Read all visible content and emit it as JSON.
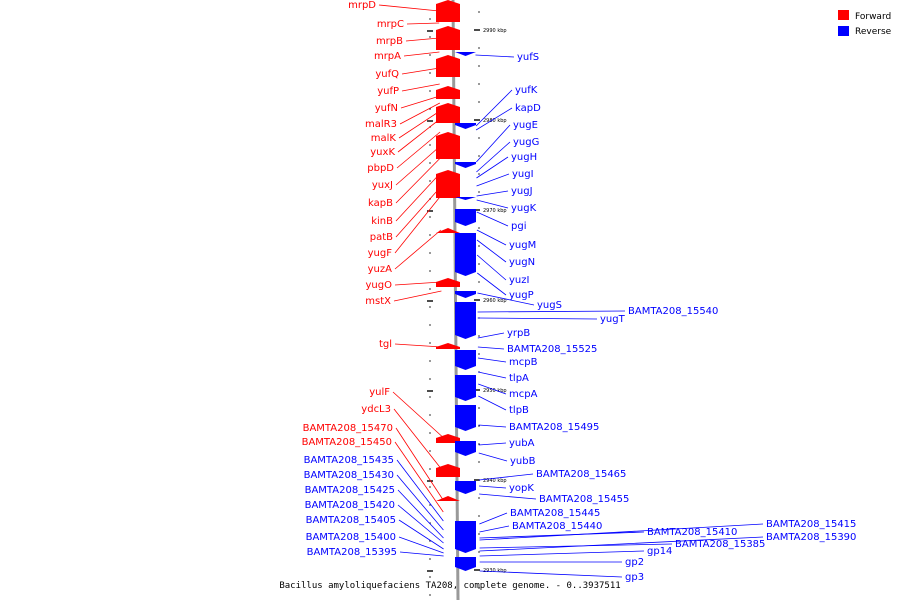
{
  "caption": "Bacillus amyloliquefaciens TA208, complete genome. - 0..3937511",
  "legend": [
    {
      "label": "Forward",
      "color": "#ff0000"
    },
    {
      "label": "Reverse",
      "color": "#0000ff"
    }
  ],
  "colors": {
    "forward": "#ff0000",
    "reverse": "#0000ff",
    "backbone": "#999999"
  },
  "ticks": [
    "2990 kbp",
    "2980 kbp",
    "2970 kbp",
    "2960 kbp",
    "2950 kbp",
    "2940 kbp",
    "2930 kbp"
  ],
  "forward_genes": [
    "mrpD",
    "mrpC",
    "mrpB",
    "mrpA",
    "yufQ",
    "yufP",
    "yufN",
    "malR3",
    "malK",
    "yuxK",
    "pbpD",
    "yuxJ",
    "kapB",
    "kinB",
    "patB",
    "yugF",
    "yuzA",
    "yugO",
    "mstX",
    "tgl",
    "yulF",
    "ydcL3",
    "BAMTA208_15470",
    "BAMTA208_15450",
    "BAMTA208_15435",
    "BAMTA208_15430",
    "BAMTA208_15425",
    "BAMTA208_15420",
    "BAMTA208_15405",
    "BAMTA208_15400",
    "BAMTA208_15395"
  ],
  "reverse_genes": [
    "yufS",
    "yufK",
    "kapD",
    "yugE",
    "yugG",
    "yugH",
    "yugI",
    "yugJ",
    "yugK",
    "pgi",
    "yugM",
    "yugN",
    "yuzI",
    "yugP",
    "yugS",
    "BAMTA208_15540",
    "yugT",
    "yrpB",
    "BAMTA208_15525",
    "mcpB",
    "tlpA",
    "mcpA",
    "tlpB",
    "BAMTA208_15495",
    "yubA",
    "yubB",
    "BAMTA208_15465",
    "yopK",
    "BAMTA208_15455",
    "BAMTA208_15445",
    "BAMTA208_15440",
    "BAMTA208_15410",
    "BAMTA208_15415",
    "BAMTA208_15385",
    "BAMTA208_15390",
    "gp14",
    "gp2",
    "gp3"
  ]
}
